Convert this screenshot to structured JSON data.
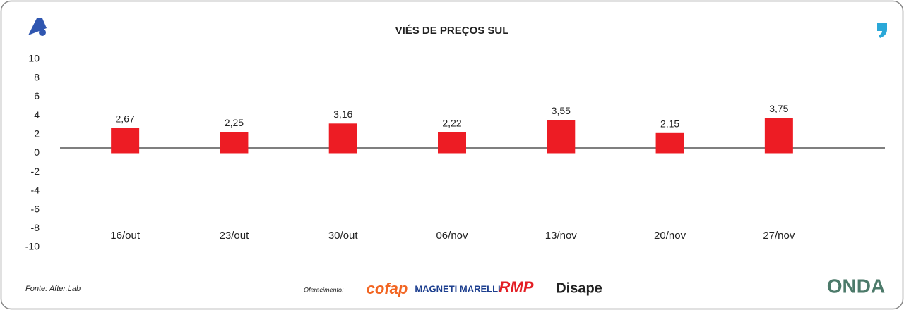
{
  "chart_data": {
    "type": "bar",
    "title": "VIÉS DE PREÇOS SUL",
    "categories": [
      "16/out",
      "23/out",
      "30/out",
      "06/nov",
      "13/nov",
      "20/nov",
      "27/nov"
    ],
    "values": [
      2.67,
      2.25,
      3.16,
      2.22,
      3.55,
      2.15,
      3.75
    ],
    "value_labels": [
      "2,67",
      "2,25",
      "3,16",
      "2,22",
      "3,55",
      "2,15",
      "3,75"
    ],
    "color": "#ed1c24",
    "ylim": [
      -10,
      10
    ],
    "yticks": [
      10,
      8,
      6,
      4,
      2,
      0,
      -2,
      -4,
      -6,
      -8,
      -10
    ],
    "grid": false
  },
  "footer": {
    "source": "Fonte: After.Lab",
    "sponsor_label": "Oferecimento:",
    "sponsors": [
      "cofap",
      "MAGNETI MARELLI",
      "RMP",
      "Disape"
    ],
    "brand": "ONDA"
  }
}
